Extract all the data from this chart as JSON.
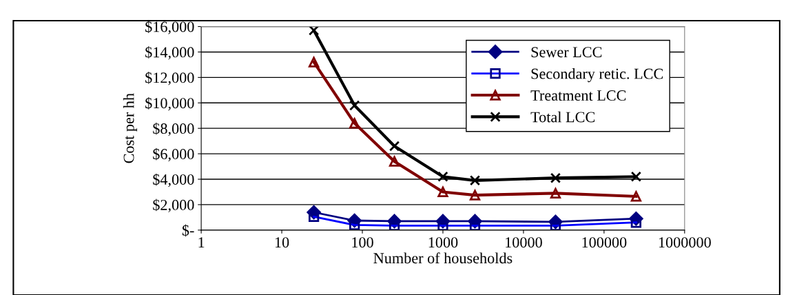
{
  "chart_data": {
    "type": "line",
    "xlabel": "Number of households",
    "ylabel": "Cost per hh",
    "log": "x",
    "x": [
      25,
      80,
      250,
      1000,
      2500,
      25000,
      250000
    ],
    "xlim": [
      1,
      1000000
    ],
    "xticks": [
      1,
      10,
      100,
      1000,
      10000,
      100000,
      1000000
    ],
    "ylim": [
      0,
      16000
    ],
    "yticks": [
      {
        "value": 0,
        "label": "$-"
      },
      {
        "value": 2000,
        "label": "$2,000"
      },
      {
        "value": 4000,
        "label": "$4,000"
      },
      {
        "value": 6000,
        "label": "$6,000"
      },
      {
        "value": 8000,
        "label": "$8,000"
      },
      {
        "value": 10000,
        "label": "$10,000"
      },
      {
        "value": 12000,
        "label": "$12,000"
      },
      {
        "value": 14000,
        "label": "$14,000"
      },
      {
        "value": 16000,
        "label": "$16,000"
      }
    ],
    "grid": "y",
    "legend": "top right",
    "series": [
      {
        "name": "Sewer LCC",
        "color": "#000080",
        "marker": "diamond",
        "values": [
          1400,
          750,
          700,
          700,
          700,
          650,
          900
        ]
      },
      {
        "name": "Secondary retic. LCC",
        "color": "#0000ff",
        "marker": "square",
        "values": [
          1050,
          400,
          350,
          350,
          350,
          350,
          600
        ]
      },
      {
        "name": "Treatment LCC",
        "color": "#800000",
        "marker": "triangle",
        "values": [
          13200,
          8400,
          5400,
          3000,
          2750,
          2900,
          2650
        ]
      },
      {
        "name": "Total LCC",
        "color": "#000000",
        "marker": "cross",
        "values": [
          15700,
          9800,
          6600,
          4200,
          3900,
          4100,
          4200
        ]
      }
    ]
  }
}
